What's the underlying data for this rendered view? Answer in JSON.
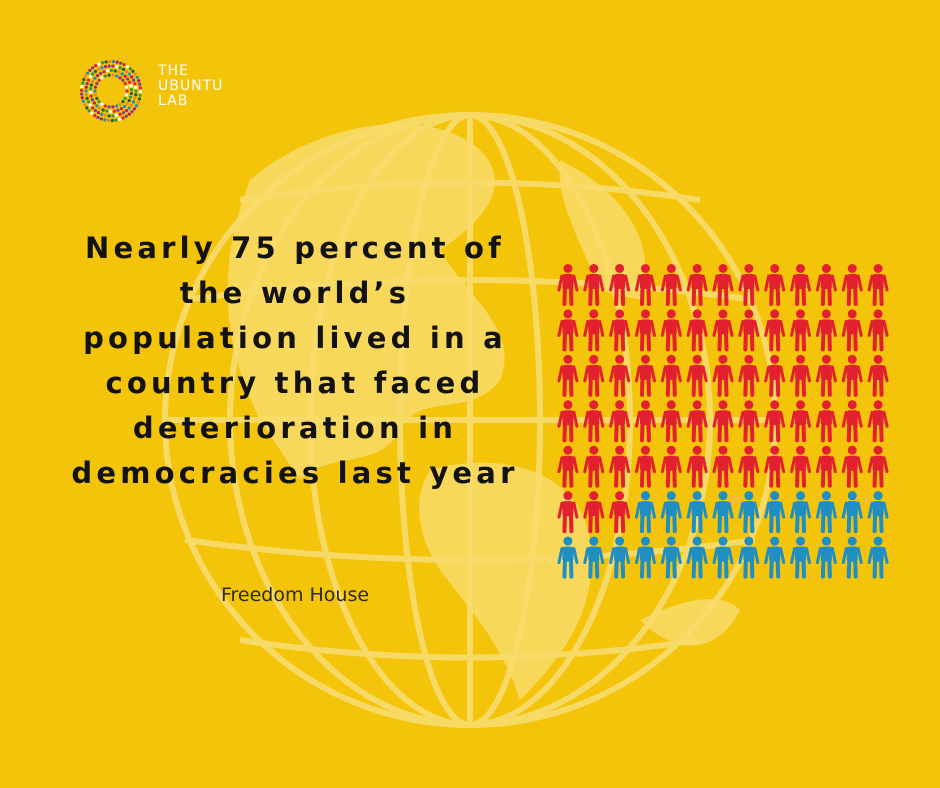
{
  "brand": {
    "line1": "THE",
    "line2": "UBUNTU",
    "line3": "LAB"
  },
  "headline": "Nearly 75 percent of the world’s population lived in a country that faced deterioration in democracies last year",
  "source": "Freedom House",
  "colors": {
    "background": "#f4c40a",
    "globe": "#f8dc6a",
    "affected": "#e3202f",
    "unaffected": "#1f8fc3"
  },
  "chart_data": {
    "type": "pictogram",
    "total": 91,
    "series": [
      {
        "value": 68,
        "color": "#e3202f"
      },
      {
        "value": 23,
        "color": "#1f8fc3"
      }
    ],
    "columns": 13,
    "rows": 7
  }
}
